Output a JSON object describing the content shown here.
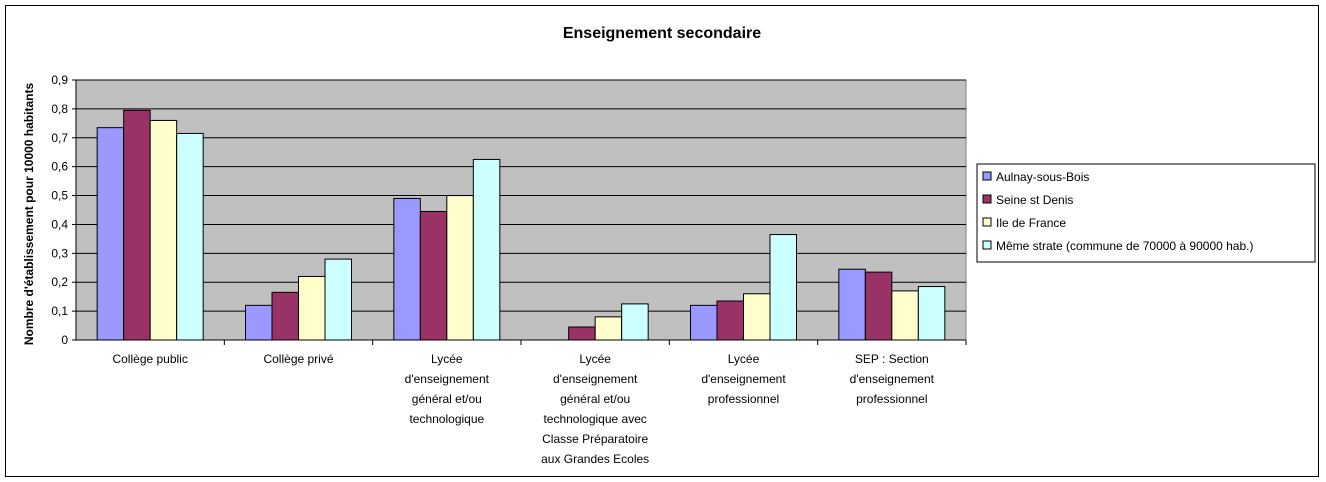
{
  "chart_data": {
    "type": "bar",
    "title": "Enseignement secondaire",
    "xlabel": "",
    "ylabel": "Nombre d'établissement pour 10000 habitants",
    "ylim": [
      0,
      0.9
    ],
    "yticks": [
      "0",
      "0,1",
      "0,2",
      "0,3",
      "0,4",
      "0,5",
      "0,6",
      "0,7",
      "0,8",
      "0,9"
    ],
    "grid": true,
    "legend_position": "right",
    "categories": [
      [
        "Collège public"
      ],
      [
        "Collège privé"
      ],
      [
        "Lycée",
        "d'enseignement",
        "général et/ou",
        "technologique"
      ],
      [
        "Lycée",
        "d'enseignement",
        "général et/ou",
        "technologique avec",
        "Classe Préparatoire",
        "aux Grandes Ecoles"
      ],
      [
        "Lycée",
        "d'enseignement",
        "professionnel"
      ],
      [
        "SEP : Section",
        "d'enseignement",
        "professionnel"
      ]
    ],
    "series": [
      {
        "name": "Aulnay-sous-Bois",
        "color": "#9999ff",
        "values": [
          0.735,
          0.12,
          0.49,
          0.0,
          0.12,
          0.245
        ]
      },
      {
        "name": "Seine st Denis",
        "color": "#993366",
        "values": [
          0.795,
          0.165,
          0.445,
          0.045,
          0.135,
          0.235
        ]
      },
      {
        "name": "Ile de France",
        "color": "#ffffcc",
        "values": [
          0.76,
          0.22,
          0.5,
          0.08,
          0.16,
          0.17
        ]
      },
      {
        "name": "Même strate (commune de 70000 à 90000 hab.)",
        "color": "#ccffff",
        "values": [
          0.715,
          0.28,
          0.625,
          0.125,
          0.365,
          0.185
        ]
      }
    ],
    "plot_background": "#c0c0c0"
  }
}
